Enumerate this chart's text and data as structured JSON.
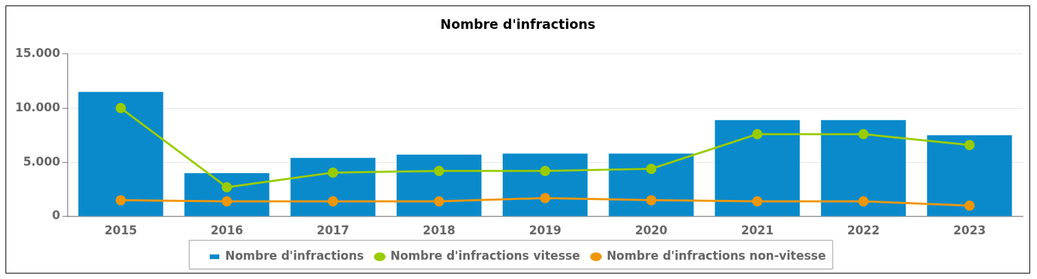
{
  "chart_data": {
    "type": "bar",
    "title": "Nombre d'infractions",
    "categories": [
      "2015",
      "2016",
      "2017",
      "2018",
      "2019",
      "2020",
      "2021",
      "2022",
      "2023"
    ],
    "series": [
      {
        "name": "Nombre d'infractions",
        "color": "#0a8acb",
        "values": [
          11500,
          4000,
          5400,
          5700,
          5800,
          5800,
          8900,
          8900,
          7500
        ]
      },
      {
        "name": "Nombre d'infractions vitesse",
        "type": "line",
        "color": "#99cc00",
        "values": [
          10000,
          2700,
          4050,
          4200,
          4200,
          4400,
          7600,
          7600,
          6600
        ]
      },
      {
        "name": "Nombre d'infractions non-vitesse",
        "type": "line",
        "color": "#f0960a",
        "values": [
          1500,
          1400,
          1400,
          1400,
          1700,
          1500,
          1400,
          1400,
          1000
        ]
      }
    ],
    "ylim": [
      0,
      15000
    ],
    "yticks": [
      {
        "value": 0,
        "label": "0"
      },
      {
        "value": 5000,
        "label": "5.000"
      },
      {
        "value": 10000,
        "label": "10.000"
      },
      {
        "value": 15000,
        "label": "15.000"
      }
    ],
    "grid": "y",
    "legend": "bottom",
    "marker": "circle",
    "line_style": "solid"
  }
}
